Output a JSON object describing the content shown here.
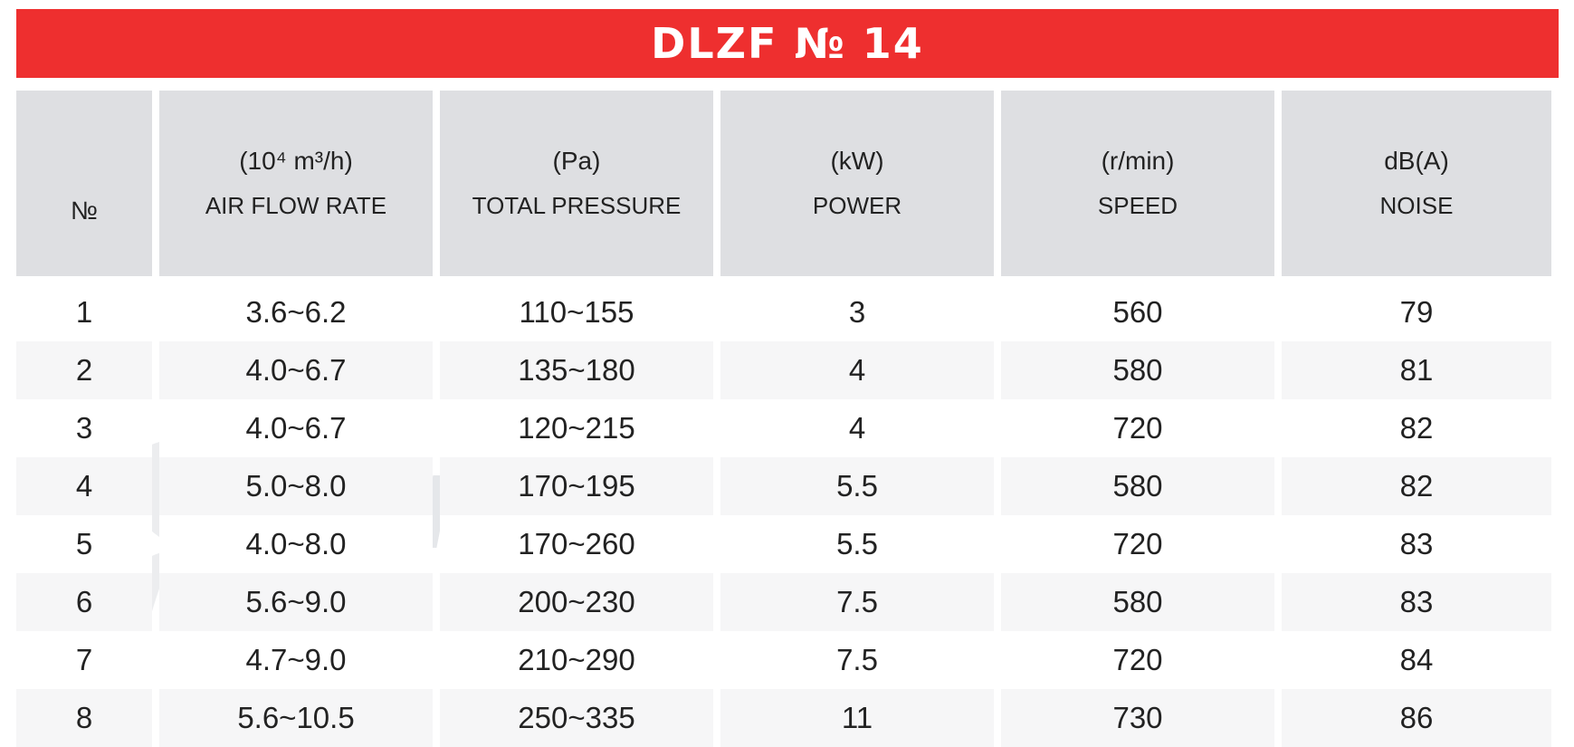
{
  "title": "DLZF № 14",
  "watermark_text": "VENTEL",
  "colors": {
    "title_bg": "#ee2f2f",
    "header_bg": "#dedfe2",
    "watermark_blue": "#4a7fd0"
  },
  "table": {
    "headers": [
      {
        "unit": "",
        "label": "№"
      },
      {
        "unit": "(10⁴ m³/h)",
        "label": "AIR FLOW RATE"
      },
      {
        "unit": "(Pa)",
        "label": "TOTAL PRESSURE"
      },
      {
        "unit": "(kW)",
        "label": "POWER"
      },
      {
        "unit": "(r/min)",
        "label": "SPEED"
      },
      {
        "unit": "dB(A)",
        "label": "NOISE"
      }
    ],
    "rows": [
      [
        "1",
        "3.6~6.2",
        "110~155",
        "3",
        "560",
        "79"
      ],
      [
        "2",
        "4.0~6.7",
        "135~180",
        "4",
        "580",
        "81"
      ],
      [
        "3",
        "4.0~6.7",
        "120~215",
        "4",
        "720",
        "82"
      ],
      [
        "4",
        "5.0~8.0",
        "170~195",
        "5.5",
        "580",
        "82"
      ],
      [
        "5",
        "4.0~8.0",
        "170~260",
        "5.5",
        "720",
        "83"
      ],
      [
        "6",
        "5.6~9.0",
        "200~230",
        "7.5",
        "580",
        "83"
      ],
      [
        "7",
        "4.7~9.0",
        "210~290",
        "7.5",
        "720",
        "84"
      ],
      [
        "8",
        "5.6~10.5",
        "250~335",
        "11",
        "730",
        "86"
      ]
    ]
  }
}
